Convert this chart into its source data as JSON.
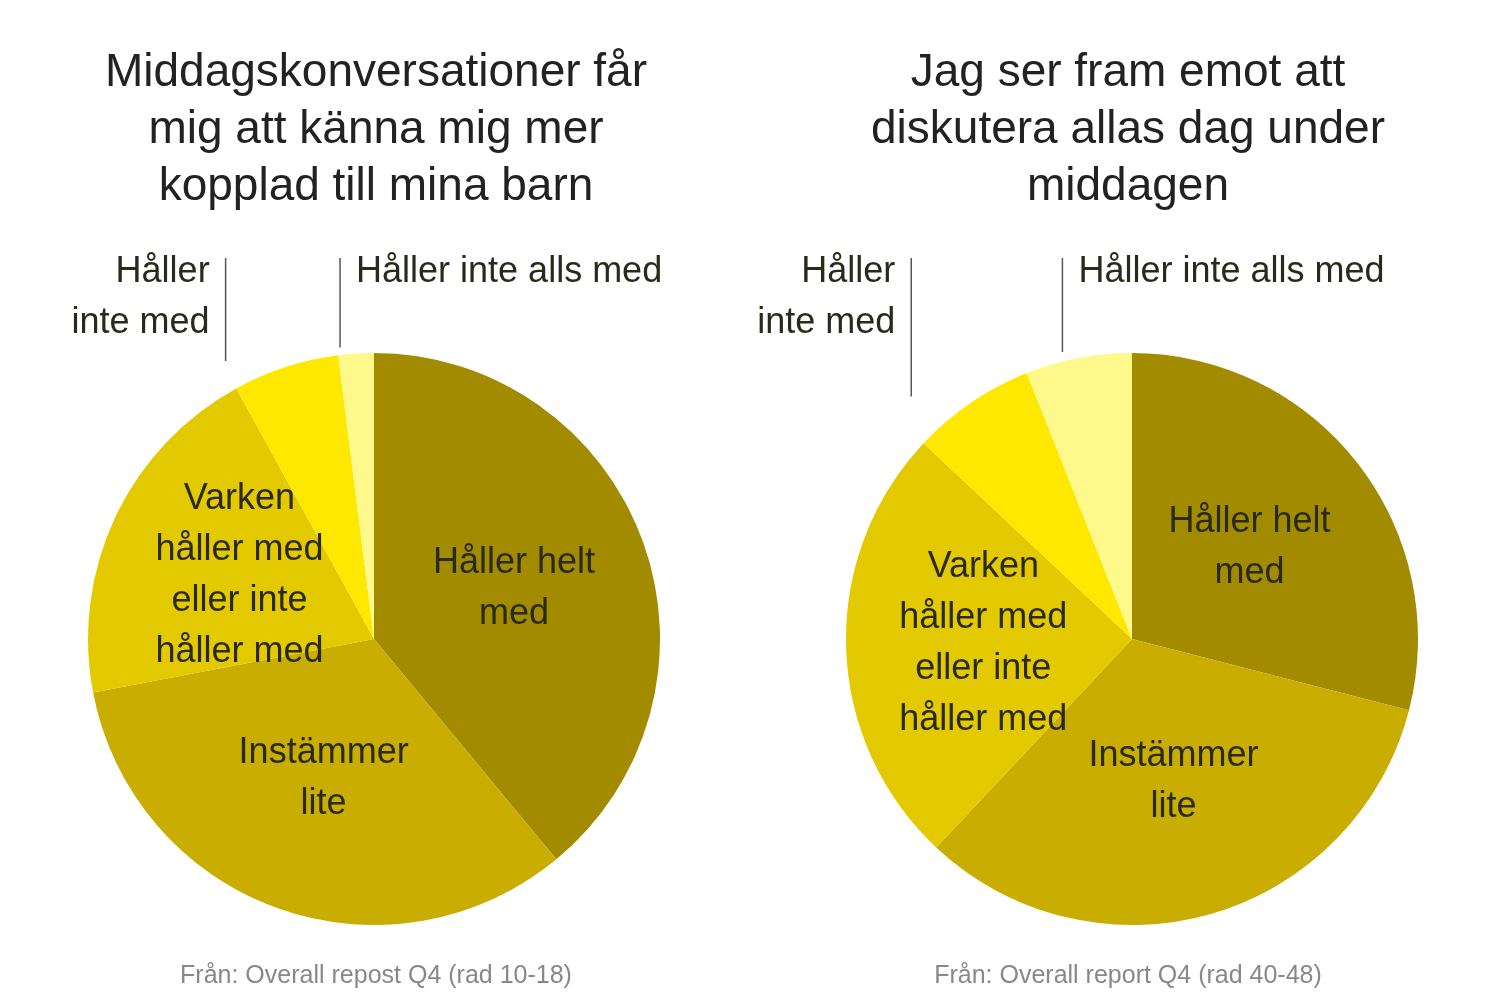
{
  "chart_data": [
    {
      "type": "pie",
      "title": "Middagskonversationer får mig att känna mig mer kopplad till mina barn",
      "categories": [
        "Håller helt med",
        "Instämmer lite",
        "Varken håller med eller inte håller med",
        "Håller inte med",
        "Håller inte alls med"
      ],
      "values": [
        39,
        33,
        20,
        6,
        2
      ],
      "colors": [
        "#a38b00",
        "#c9ad00",
        "#e2c900",
        "#ffe800",
        "#fff88a"
      ],
      "annotations": [
        "Från: Overall repost Q4 (rad 10-18)"
      ]
    },
    {
      "type": "pie",
      "title": "Jag ser fram emot att diskutera allas dag under middagen",
      "categories": [
        "Håller helt med",
        "Instämmer lite",
        "Varken håller med eller inte håller med",
        "Håller inte med",
        "Håller inte alls med"
      ],
      "values": [
        29,
        33,
        25,
        7,
        6
      ],
      "colors": [
        "#a38b00",
        "#c9ad00",
        "#e2c900",
        "#ffe800",
        "#fff88a"
      ],
      "annotations": [
        "Från: Overall report Q4 (rad 40-48)"
      ]
    }
  ]
}
